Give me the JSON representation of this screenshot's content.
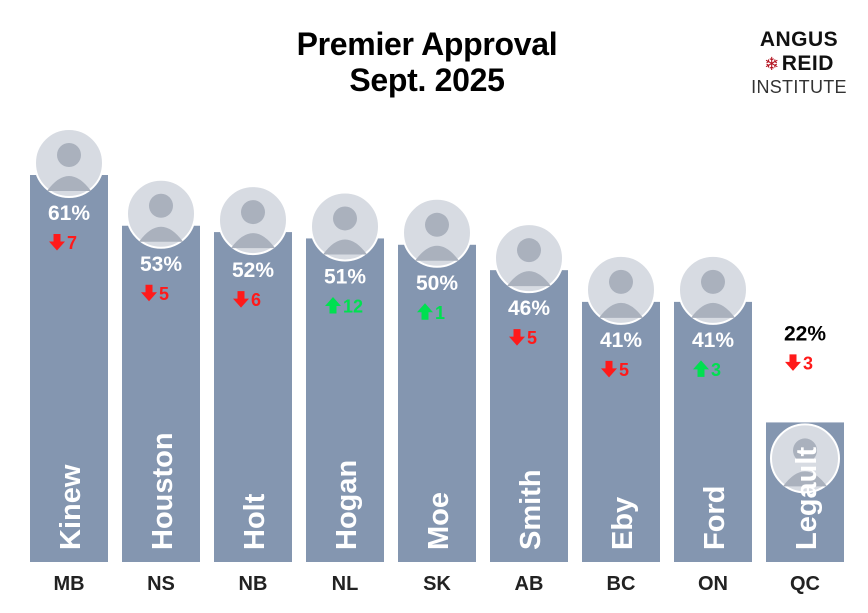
{
  "title": {
    "line1": "Premier Approval",
    "line2": "Sept. 2025"
  },
  "logo": {
    "line1": "ANGUS",
    "line2": "REID",
    "line3": "INSTITUTE"
  },
  "colors": {
    "bar": "#8496b0",
    "down": "#ff1a1a",
    "up": "#00e050",
    "text_on_bar": "#ffffff",
    "text_off_bar": "#000000"
  },
  "chart_data": {
    "type": "bar",
    "title": "Premier Approval Sept. 2025",
    "categories": [
      "MB",
      "NS",
      "NB",
      "NL",
      "SK",
      "AB",
      "BC",
      "ON",
      "QC"
    ],
    "names": [
      "Kinew",
      "Houston",
      "Holt",
      "Hogan",
      "Moe",
      "Smith",
      "Eby",
      "Ford",
      "Legault"
    ],
    "values": [
      61,
      53,
      52,
      51,
      50,
      46,
      41,
      41,
      22
    ],
    "value_labels": [
      "61%",
      "53%",
      "52%",
      "51%",
      "50%",
      "46%",
      "41%",
      "41%",
      "22%"
    ],
    "changes": [
      {
        "direction": "down",
        "label": "7"
      },
      {
        "direction": "down",
        "label": "5"
      },
      {
        "direction": "down",
        "label": "6"
      },
      {
        "direction": "up",
        "label": "12"
      },
      {
        "direction": "up",
        "label": "1"
      },
      {
        "direction": "down",
        "label": "5"
      },
      {
        "direction": "down",
        "label": "5"
      },
      {
        "direction": "up",
        "label": "3"
      },
      {
        "direction": "down",
        "label": "3"
      }
    ],
    "xlabel": "",
    "ylabel": "",
    "ylim": [
      0,
      61
    ],
    "grid": false,
    "legend": "none"
  }
}
